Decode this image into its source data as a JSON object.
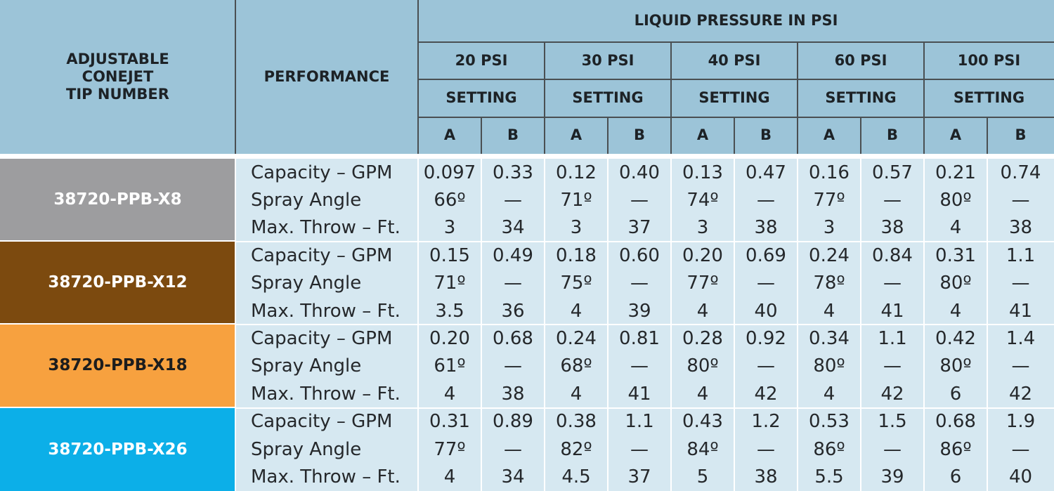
{
  "header": {
    "tip_number": "ADJUSTABLE\nCONEJET\nTIP NUMBER",
    "performance": "PERFORMANCE",
    "liquid_pressure": "LIQUID PRESSURE IN PSI",
    "setting": "SETTING",
    "pressures": [
      "20 PSI",
      "30 PSI",
      "40 PSI",
      "60 PSI",
      "100 PSI"
    ],
    "settings": [
      "A",
      "B"
    ]
  },
  "colors": {
    "header_bg": "#9cc4d8",
    "data_bg": "#d6e8f1",
    "tip_colors": [
      "#9d9d9f",
      "#7c4a0f",
      "#f7a13f",
      "#0cafe8"
    ]
  },
  "performance_labels": [
    "Capacity – GPM",
    "Spray Angle",
    "Max. Throw – Ft."
  ],
  "rows": [
    {
      "tip": "38720-PPB-X8",
      "color": "#9d9d9f",
      "label_color": "#ffffff",
      "data": [
        [
          "0.097",
          "0.33",
          "0.12",
          "0.40",
          "0.13",
          "0.47",
          "0.16",
          "0.57",
          "0.21",
          "0.74"
        ],
        [
          "66º",
          "—",
          "71º",
          "—",
          "74º",
          "—",
          "77º",
          "—",
          "80º",
          "—"
        ],
        [
          "3",
          "34",
          "3",
          "37",
          "3",
          "38",
          "3",
          "38",
          "4",
          "38"
        ]
      ]
    },
    {
      "tip": "38720-PPB-X12",
      "color": "#7c4a0f",
      "label_color": "#ffffff",
      "data": [
        [
          "0.15",
          "0.49",
          "0.18",
          "0.60",
          "0.20",
          "0.69",
          "0.24",
          "0.84",
          "0.31",
          "1.1"
        ],
        [
          "71º",
          "—",
          "75º",
          "—",
          "77º",
          "—",
          "78º",
          "—",
          "80º",
          "—"
        ],
        [
          "3.5",
          "36",
          "4",
          "39",
          "4",
          "40",
          "4",
          "41",
          "4",
          "41"
        ]
      ]
    },
    {
      "tip": "38720-PPB-X18",
      "color": "#f7a13f",
      "label_color": "#1d1d1d",
      "data": [
        [
          "0.20",
          "0.68",
          "0.24",
          "0.81",
          "0.28",
          "0.92",
          "0.34",
          "1.1",
          "0.42",
          "1.4"
        ],
        [
          "61º",
          "—",
          "68º",
          "—",
          "80º",
          "—",
          "80º",
          "—",
          "80º",
          "—"
        ],
        [
          "4",
          "38",
          "4",
          "41",
          "4",
          "42",
          "4",
          "42",
          "6",
          "42"
        ]
      ]
    },
    {
      "tip": "38720-PPB-X26",
      "color": "#0cafe8",
      "label_color": "#ffffff",
      "data": [
        [
          "0.31",
          "0.89",
          "0.38",
          "1.1",
          "0.43",
          "1.2",
          "0.53",
          "1.5",
          "0.68",
          "1.9"
        ],
        [
          "77º",
          "—",
          "82º",
          "—",
          "84º",
          "—",
          "86º",
          "—",
          "86º",
          "—"
        ],
        [
          "4",
          "34",
          "4.5",
          "37",
          "5",
          "38",
          "5.5",
          "39",
          "6",
          "40"
        ]
      ]
    }
  ]
}
